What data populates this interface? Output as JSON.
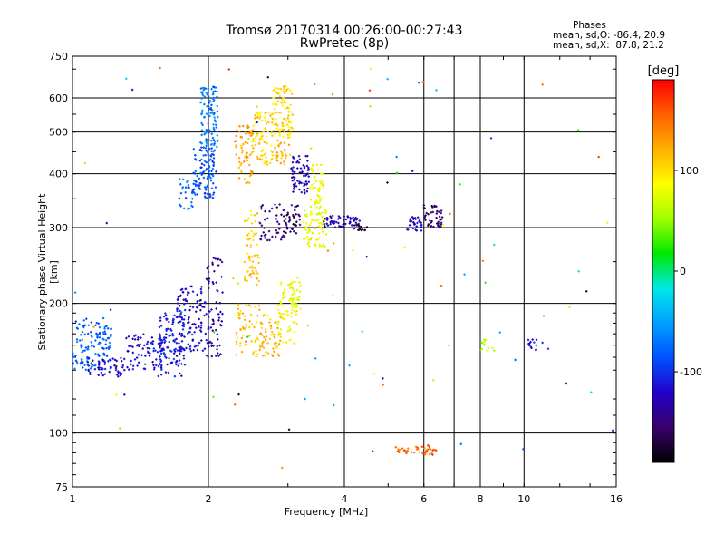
{
  "header": {
    "title": "Tromsø 20170314 00:26:00-00:27:43",
    "subtitle": "RwPretec (8p)",
    "stats_title": "Phases",
    "stats_line1": "mean, sd,O: -86.4, 20.9",
    "stats_line2": "mean, sd,X:  87.8, 21.2"
  },
  "colorbar": {
    "label": "[deg]",
    "ticks": [
      100,
      0,
      -100
    ],
    "range": [
      -190,
      190
    ],
    "colors": [
      "#000000",
      "#3a006a",
      "#2200c8",
      "#0050ff",
      "#00a0ff",
      "#00e8e8",
      "#00e800",
      "#a0ff00",
      "#ffff00",
      "#ffb000",
      "#ff6000",
      "#ff0000"
    ]
  },
  "chart_data": {
    "type": "scatter",
    "title": "Tromsø 20170314 00:26:00-00:27:43",
    "subtitle": "RwPretec (8p)",
    "xlabel": "Frequency [MHz]",
    "ylabel": "Stationary phase Virtual Height [km]",
    "xscale": "log",
    "yscale": "log",
    "xlim": [
      1,
      16
    ],
    "ylim": [
      75,
      750
    ],
    "xticks": [
      1,
      2,
      4,
      6,
      8,
      10,
      16
    ],
    "yticks": [
      75,
      100,
      200,
      300,
      400,
      500,
      600,
      750
    ],
    "vgrid": [
      2,
      4,
      6,
      7,
      8,
      10
    ],
    "hgrid": [
      100,
      200,
      300,
      400,
      500,
      600
    ],
    "color_value": "Phase [deg]",
    "clusters": [
      {
        "f": [
          1.0,
          1.22
        ],
        "h": [
          140,
          185
        ],
        "phase": -80,
        "n": 130
      },
      {
        "f": [
          1.08,
          1.3
        ],
        "h": [
          135,
          150
        ],
        "phase": -120,
        "n": 50
      },
      {
        "f": [
          1.3,
          1.6
        ],
        "h": [
          140,
          170
        ],
        "phase": -115,
        "n": 80
      },
      {
        "f": [
          1.55,
          1.78
        ],
        "h": [
          135,
          190
        ],
        "phase": -110,
        "n": 120
      },
      {
        "f": [
          1.7,
          1.98
        ],
        "h": [
          155,
          220
        ],
        "phase": -120,
        "n": 110
      },
      {
        "f": [
          1.98,
          2.15
        ],
        "h": [
          150,
          260
        ],
        "phase": -130,
        "n": 70
      },
      {
        "f": [
          1.72,
          1.85
        ],
        "h": [
          330,
          390
        ],
        "phase": -75,
        "n": 30
      },
      {
        "f": [
          1.85,
          2.08
        ],
        "h": [
          350,
          460
        ],
        "phase": -85,
        "n": 110
      },
      {
        "f": [
          1.92,
          2.1
        ],
        "h": [
          460,
          640
        ],
        "phase": -70,
        "n": 110
      },
      {
        "f": [
          2.28,
          2.52
        ],
        "h": [
          380,
          520
        ],
        "phase": 125,
        "n": 70
      },
      {
        "f": [
          2.5,
          2.78
        ],
        "h": [
          420,
          560
        ],
        "phase": 105,
        "n": 80
      },
      {
        "f": [
          2.78,
          3.08
        ],
        "h": [
          480,
          640
        ],
        "phase": 100,
        "n": 90
      },
      {
        "f": [
          2.8,
          3.05
        ],
        "h": [
          420,
          480
        ],
        "phase": 120,
        "n": 30
      },
      {
        "f": [
          3.05,
          3.35
        ],
        "h": [
          360,
          440
        ],
        "phase": -125,
        "n": 70
      },
      {
        "f": [
          3.35,
          3.6
        ],
        "h": [
          320,
          420
        ],
        "phase": 80,
        "n": 60
      },
      {
        "f": [
          2.4,
          2.6
        ],
        "h": [
          220,
          330
        ],
        "phase": 110,
        "n": 60
      },
      {
        "f": [
          2.6,
          2.95
        ],
        "h": [
          280,
          340
        ],
        "phase": -140,
        "n": 40
      },
      {
        "f": [
          2.9,
          3.2
        ],
        "h": [
          290,
          340
        ],
        "phase": -160,
        "n": 40
      },
      {
        "f": [
          3.25,
          3.65
        ],
        "h": [
          270,
          330
        ],
        "phase": 80,
        "n": 70
      },
      {
        "f": [
          3.6,
          4.35
        ],
        "h": [
          300,
          320
        ],
        "phase": -125,
        "n": 60
      },
      {
        "f": [
          4.2,
          4.5
        ],
        "h": [
          295,
          305
        ],
        "phase": -170,
        "n": 15
      },
      {
        "f": [
          5.5,
          5.95
        ],
        "h": [
          295,
          320
        ],
        "phase": -125,
        "n": 30
      },
      {
        "f": [
          6.0,
          6.6
        ],
        "h": [
          300,
          340
        ],
        "phase": -155,
        "n": 45
      },
      {
        "f": [
          2.3,
          2.6
        ],
        "h": [
          150,
          200
        ],
        "phase": 110,
        "n": 60
      },
      {
        "f": [
          2.6,
          2.9
        ],
        "h": [
          150,
          190
        ],
        "phase": 115,
        "n": 60
      },
      {
        "f": [
          2.85,
          3.15
        ],
        "h": [
          160,
          230
        ],
        "phase": 85,
        "n": 70
      },
      {
        "f": [
          3.05,
          3.2
        ],
        "h": [
          190,
          230
        ],
        "phase": 75,
        "n": 25
      },
      {
        "f": [
          5.2,
          6.1
        ],
        "h": [
          89,
          93
        ],
        "phase": 150,
        "n": 30
      },
      {
        "f": [
          6.1,
          6.4
        ],
        "h": [
          89,
          94
        ],
        "phase": 155,
        "n": 15
      },
      {
        "f": [
          8.0,
          8.6
        ],
        "h": [
          155,
          165
        ],
        "phase": 60,
        "n": 12
      },
      {
        "f": [
          10.2,
          11.0
        ],
        "h": [
          155,
          165
        ],
        "phase": -110,
        "n": 14
      },
      {
        "f": [
          1.0,
          16.0
        ],
        "h": [
          80,
          740
        ],
        "phase": 0,
        "n": 90,
        "sparse": true
      }
    ]
  }
}
